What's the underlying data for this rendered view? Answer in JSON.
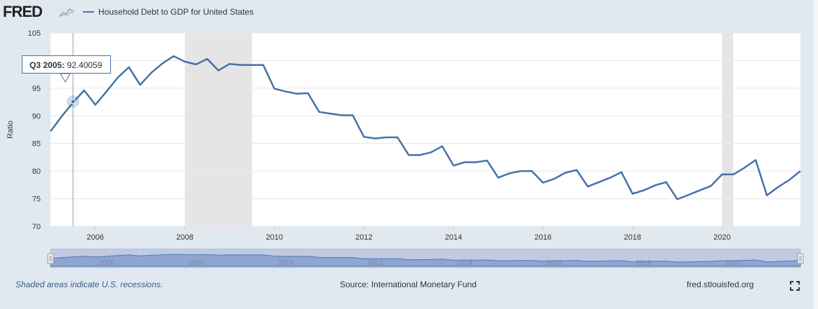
{
  "header": {
    "logo_text": "FRED",
    "series_label": "Household Debt to GDP for United States"
  },
  "tooltip": {
    "period": "Q3 2005:",
    "value": "92.40059"
  },
  "footer": {
    "recession_note": "Shaded areas indicate U.S. recessions.",
    "source": "Source: International Monetary Fund",
    "url": "fred.stlouisfed.org"
  },
  "colors": {
    "series": "#4572a7",
    "recession": "#e5e5e5",
    "plot_bg": "#ffffff",
    "page_bg": "#e1e9f0"
  },
  "chart_data": {
    "type": "line",
    "title": "",
    "xlabel": "",
    "ylabel": "Ratio",
    "xlim": [
      2005.0,
      2021.75
    ],
    "ylim": [
      70,
      105
    ],
    "yticks": [
      70,
      75,
      80,
      85,
      90,
      95,
      100,
      105
    ],
    "xticks": [
      2006,
      2008,
      2010,
      2012,
      2014,
      2016,
      2018,
      2020
    ],
    "grid": true,
    "legend_position": "top-left",
    "recessions": [
      [
        2008.0,
        2009.5
      ],
      [
        2020.0,
        2020.25
      ]
    ],
    "navigator_labels": [
      "2006",
      "2008",
      "2010",
      "2012",
      "2014",
      "2016",
      "2018",
      "2020"
    ],
    "series": [
      {
        "name": "Household Debt to GDP for United States",
        "x": [
          2005.0,
          2005.25,
          2005.5,
          2005.75,
          2006.0,
          2006.25,
          2006.5,
          2006.75,
          2007.0,
          2007.25,
          2007.5,
          2007.75,
          2008.0,
          2008.25,
          2008.5,
          2008.75,
          2009.0,
          2009.25,
          2009.5,
          2009.75,
          2010.0,
          2010.25,
          2010.5,
          2010.75,
          2011.0,
          2011.25,
          2011.5,
          2011.75,
          2012.0,
          2012.25,
          2012.5,
          2012.75,
          2013.0,
          2013.25,
          2013.5,
          2013.75,
          2014.0,
          2014.25,
          2014.5,
          2014.75,
          2015.0,
          2015.25,
          2015.5,
          2015.75,
          2016.0,
          2016.25,
          2016.5,
          2016.75,
          2017.0,
          2017.25,
          2017.5,
          2017.75,
          2018.0,
          2018.25,
          2018.5,
          2018.75,
          2019.0,
          2019.25,
          2019.5,
          2019.75,
          2020.0,
          2020.25,
          2020.5,
          2020.75,
          2021.0,
          2021.25,
          2021.5,
          2021.75
        ],
        "values": [
          87.2,
          89.9,
          92.4,
          94.6,
          92.0,
          94.4,
          96.9,
          98.8,
          95.6,
          97.8,
          99.5,
          100.8,
          99.8,
          99.3,
          100.3,
          98.2,
          99.4,
          99.2,
          99.2,
          99.2,
          94.9,
          94.4,
          94.0,
          94.1,
          90.7,
          90.4,
          90.1,
          90.1,
          86.2,
          85.9,
          86.1,
          86.1,
          82.9,
          82.9,
          83.4,
          84.5,
          81.0,
          81.6,
          81.6,
          81.9,
          78.8,
          79.6,
          80.0,
          80.0,
          77.9,
          78.6,
          79.7,
          80.2,
          77.2,
          78.0,
          78.8,
          79.8,
          75.9,
          76.5,
          77.4,
          78.0,
          74.9,
          75.7,
          76.5,
          77.3,
          79.4,
          79.4,
          80.6,
          82.0,
          75.6,
          77.1,
          78.4,
          80.0
        ]
      }
    ]
  }
}
